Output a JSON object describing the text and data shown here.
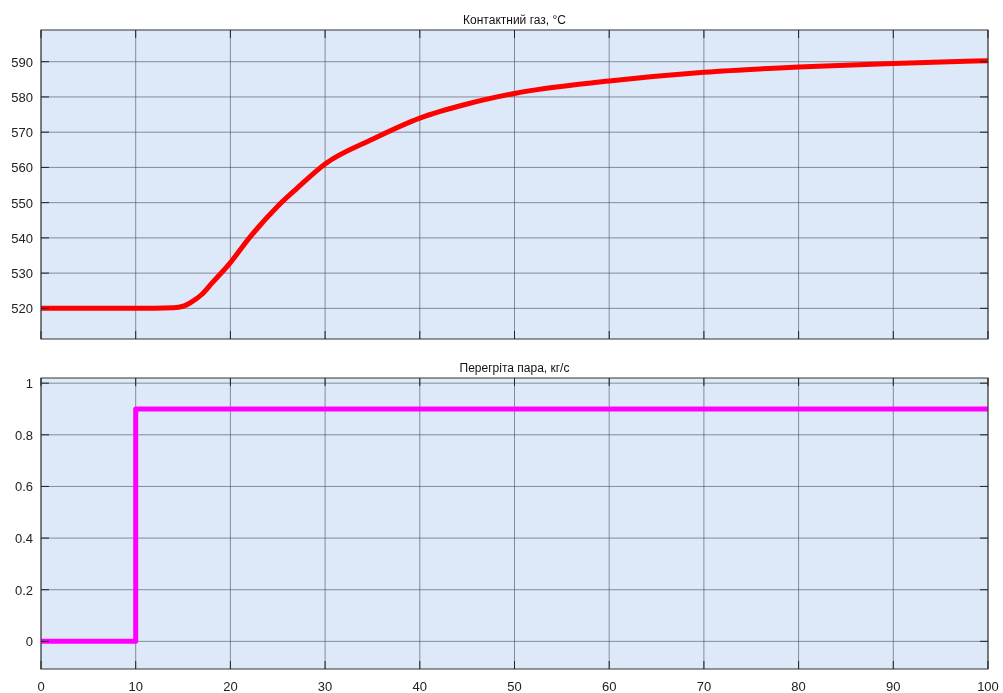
{
  "chart_data": [
    {
      "type": "line",
      "title": "Контактний газ, °C",
      "xlim": [
        0,
        100
      ],
      "xticks": [
        0,
        10,
        20,
        30,
        40,
        50,
        60,
        70,
        80,
        90,
        100
      ],
      "ylim": [
        511.3,
        599
      ],
      "yticks": [
        520,
        530,
        540,
        550,
        560,
        570,
        580,
        590
      ],
      "grid": true,
      "tick_labels": "y",
      "line_style": "solid",
      "series": [
        {
          "color": "#ff0000",
          "x": [
            0,
            5,
            10,
            14,
            15,
            16,
            17,
            18,
            20,
            22,
            25,
            27,
            30,
            35,
            40,
            45,
            50,
            60,
            70,
            80,
            90,
            100
          ],
          "values": [
            520,
            520,
            520,
            520.2,
            520.6,
            522,
            524,
            527,
            533,
            540,
            549,
            554,
            561,
            568,
            574,
            578,
            581,
            584.5,
            587,
            588.5,
            589.5,
            590.3
          ]
        }
      ]
    },
    {
      "type": "step",
      "title": "Перегріта пара, кг/с",
      "xlim": [
        0,
        100
      ],
      "xticks": [
        0,
        10,
        20,
        30,
        40,
        50,
        60,
        70,
        80,
        90,
        100
      ],
      "ylim": [
        -0.107,
        1.02
      ],
      "yticks": [
        0,
        0.2,
        0.4,
        0.6,
        0.8,
        1
      ],
      "grid": true,
      "line_style": "solid",
      "series": [
        {
          "color": "#ff00ff",
          "x": [
            0,
            10,
            100
          ],
          "values": [
            0,
            0.9,
            0.9
          ]
        }
      ]
    }
  ]
}
